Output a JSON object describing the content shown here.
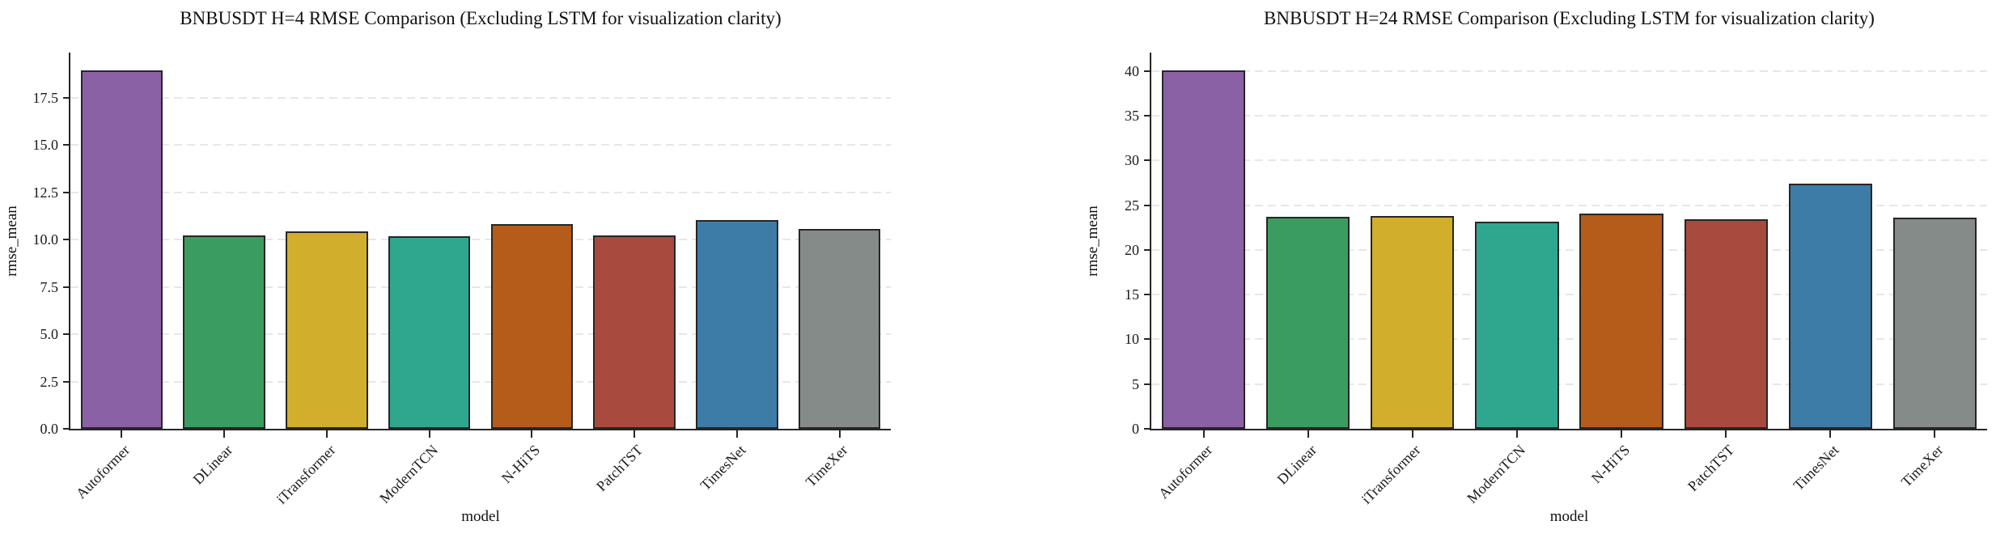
{
  "styles": {
    "background": "#ffffff",
    "grid_color": "#e7e7e7",
    "axis_color": "#262626",
    "text_color": "#1a1a1a"
  },
  "chart_data": [
    {
      "type": "bar",
      "title": "BNBUSDT H=4 RMSE Comparison (Excluding LSTM for visualization clarity)",
      "xlabel": "model",
      "ylabel": "rmse_mean",
      "categories": [
        "Autoformer",
        "DLinear",
        "iTransformer",
        "ModernTCN",
        "N-HiTS",
        "PatchTST",
        "TimesNet",
        "TimeXer"
      ],
      "values": [
        18.97,
        10.24,
        10.43,
        10.17,
        10.81,
        10.24,
        11.05,
        10.58
      ],
      "ylim": [
        0,
        19.9
      ],
      "ytick_values": [
        0,
        2.5,
        5,
        7.5,
        10,
        12.5,
        15,
        17.5
      ],
      "ytick_labels": [
        "0.0",
        "2.5",
        "5.0",
        "7.5",
        "10.0",
        "12.5",
        "15.0",
        "17.5"
      ],
      "grid": "horizontal-dashed",
      "legend": "none",
      "bar_width_ratio": 0.8,
      "bar_colors": [
        "#8b61a6",
        "#3b9c5f",
        "#d2ae2d",
        "#2fa78f",
        "#b55c1a",
        "#a94a3e",
        "#3d7ca6",
        "#848b89"
      ],
      "bar_edge_color": "#262626"
    },
    {
      "type": "bar",
      "title": "BNBUSDT H=24 RMSE Comparison (Excluding LSTM for visualization clarity)",
      "xlabel": "model",
      "ylabel": "rmse_mean",
      "categories": [
        "Autoformer",
        "DLinear",
        "iTransformer",
        "ModernTCN",
        "N-HiTS",
        "PatchTST",
        "TimesNet",
        "TimeXer"
      ],
      "values": [
        40.1,
        23.66,
        23.75,
        23.15,
        24.02,
        23.44,
        27.42,
        23.57
      ],
      "ylim": [
        0,
        42.05
      ],
      "ytick_values": [
        0,
        5,
        10,
        15,
        20,
        25,
        30,
        35,
        40
      ],
      "ytick_labels": [
        "0",
        "5",
        "10",
        "15",
        "20",
        "25",
        "30",
        "35",
        "40"
      ],
      "grid": "horizontal-dashed",
      "legend": "none",
      "bar_width_ratio": 0.8,
      "bar_colors": [
        "#8b61a6",
        "#3b9c5f",
        "#d2ae2d",
        "#2fa78f",
        "#b55c1a",
        "#a94a3e",
        "#3d7ca6",
        "#848b89"
      ],
      "bar_edge_color": "#262626"
    }
  ]
}
